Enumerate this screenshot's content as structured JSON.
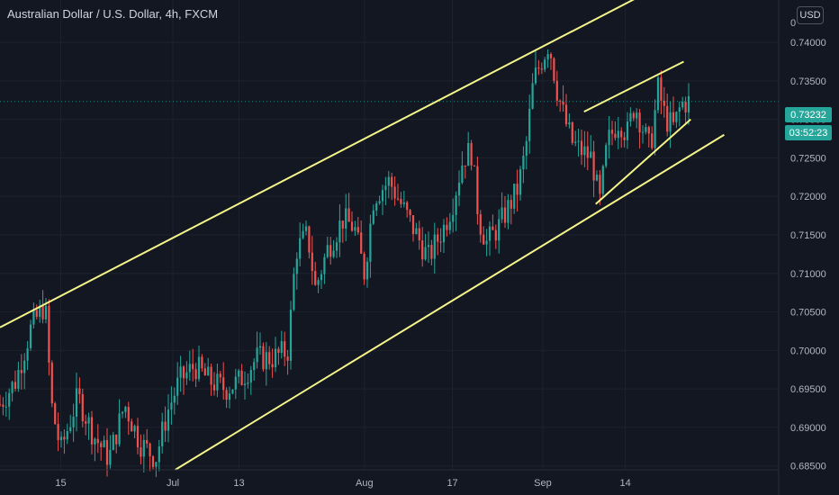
{
  "header": {
    "title": "Australian Dollar / U.S. Dollar, 4h, FXCM",
    "currency_button": "USD"
  },
  "price_axis": {
    "ticks": [
      "0.74000",
      "0.73500",
      "0.73000",
      "0.72500",
      "0.72000",
      "0.71500",
      "0.71000",
      "0.70500",
      "0.70000",
      "0.69500",
      "0.69000",
      "0.68500"
    ],
    "top_partial_label": "0",
    "current_price": "0.73232",
    "countdown": "03:52:23"
  },
  "time_axis": {
    "ticks": [
      "15",
      "Jul",
      "13",
      "Aug",
      "17",
      "Sep",
      "14"
    ]
  },
  "colors": {
    "background": "#131722",
    "up": "#26a69a",
    "down": "#ef5350",
    "trendline": "#f5f58a",
    "axis_text": "#b2b5be"
  },
  "chart_data": {
    "type": "candlestick",
    "symbol": "AUDUSD",
    "timeframe": "4h",
    "ylim": [
      0.6845,
      0.7455
    ],
    "y_ticks": [
      0.685,
      0.69,
      0.695,
      0.7,
      0.705,
      0.71,
      0.715,
      0.72,
      0.725,
      0.73,
      0.735,
      0.74
    ],
    "x_ticks": [
      {
        "label": "15",
        "t": 0.078
      },
      {
        "label": "Jul",
        "t": 0.222
      },
      {
        "label": "13",
        "t": 0.307
      },
      {
        "label": "Aug",
        "t": 0.468
      },
      {
        "label": "17",
        "t": 0.581
      },
      {
        "label": "Sep",
        "t": 0.697
      },
      {
        "label": "14",
        "t": 0.803
      }
    ],
    "price_path": [
      [
        0.0,
        0.693
      ],
      [
        0.02,
        0.696
      ],
      [
        0.04,
        0.703
      ],
      [
        0.058,
        0.706
      ],
      [
        0.066,
        0.693
      ],
      [
        0.078,
        0.687
      ],
      [
        0.1,
        0.694
      ],
      [
        0.12,
        0.689
      ],
      [
        0.14,
        0.686
      ],
      [
        0.16,
        0.693
      ],
      [
        0.18,
        0.688
      ],
      [
        0.2,
        0.686
      ],
      [
        0.215,
        0.692
      ],
      [
        0.23,
        0.696
      ],
      [
        0.25,
        0.698
      ],
      [
        0.27,
        0.696
      ],
      [
        0.29,
        0.695
      ],
      [
        0.307,
        0.696
      ],
      [
        0.33,
        0.699
      ],
      [
        0.35,
        0.699
      ],
      [
        0.37,
        0.7
      ],
      [
        0.38,
        0.713
      ],
      [
        0.395,
        0.715
      ],
      [
        0.405,
        0.708
      ],
      [
        0.42,
        0.713
      ],
      [
        0.44,
        0.717
      ],
      [
        0.455,
        0.716
      ],
      [
        0.468,
        0.71
      ],
      [
        0.48,
        0.72
      ],
      [
        0.5,
        0.722
      ],
      [
        0.515,
        0.719
      ],
      [
        0.53,
        0.716
      ],
      [
        0.55,
        0.712
      ],
      [
        0.57,
        0.716
      ],
      [
        0.581,
        0.719
      ],
      [
        0.595,
        0.725
      ],
      [
        0.605,
        0.726
      ],
      [
        0.615,
        0.717
      ],
      [
        0.625,
        0.714
      ],
      [
        0.64,
        0.716
      ],
      [
        0.655,
        0.719
      ],
      [
        0.665,
        0.721
      ],
      [
        0.675,
        0.726
      ],
      [
        0.685,
        0.735
      ],
      [
        0.697,
        0.738
      ],
      [
        0.705,
        0.74
      ],
      [
        0.715,
        0.734
      ],
      [
        0.725,
        0.73
      ],
      [
        0.735,
        0.727
      ],
      [
        0.745,
        0.726
      ],
      [
        0.76,
        0.725
      ],
      [
        0.77,
        0.719
      ],
      [
        0.78,
        0.727
      ],
      [
        0.795,
        0.73
      ],
      [
        0.805,
        0.728
      ],
      [
        0.815,
        0.732
      ],
      [
        0.825,
        0.729
      ],
      [
        0.835,
        0.726
      ],
      [
        0.845,
        0.734
      ],
      [
        0.855,
        0.73
      ],
      [
        0.865,
        0.729
      ],
      [
        0.875,
        0.732
      ],
      [
        0.885,
        0.7323
      ]
    ],
    "price_line": 0.73232,
    "trendlines": [
      {
        "name": "channel-upper",
        "from": [
          0.0,
          0.703
        ],
        "to": [
          0.822,
          0.746
        ]
      },
      {
        "name": "channel-lower",
        "from": [
          0.225,
          0.6845
        ],
        "to": [
          0.93,
          0.728
        ]
      },
      {
        "name": "wedge-top",
        "from": [
          0.75,
          0.731
        ],
        "to": [
          0.878,
          0.7375
        ]
      },
      {
        "name": "wedge-bottom",
        "from": [
          0.765,
          0.719
        ],
        "to": [
          0.887,
          0.73
        ]
      }
    ]
  }
}
